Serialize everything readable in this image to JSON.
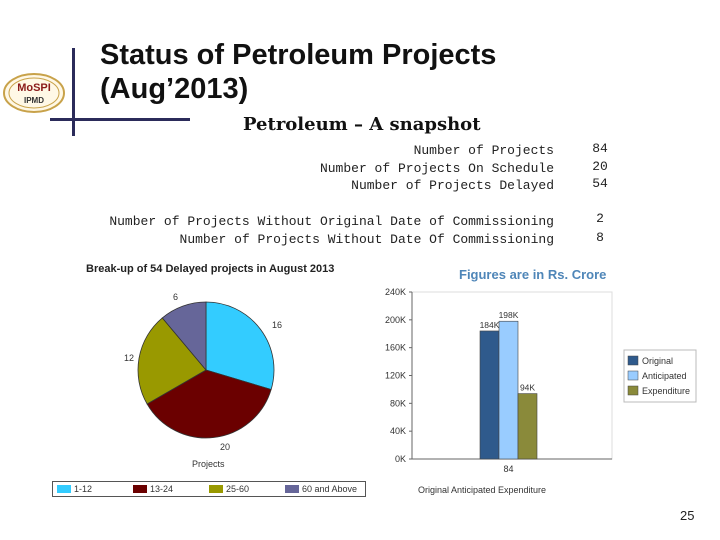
{
  "logo": {
    "line1": "MoSPI",
    "line2": "IPMD"
  },
  "slide": {
    "title_line1": "Status of Petroleum Projects",
    "title_line2": "(Aug’2013)",
    "subtitle": "Petroleum – A snapshot",
    "page_number": "25"
  },
  "stats": [
    {
      "label": "Number of Projects",
      "value": "84"
    },
    {
      "label": "Number of Projects On Schedule",
      "value": "20"
    },
    {
      "label": "Number of Projects Delayed",
      "value": "54"
    },
    {
      "label": "Number of Projects Without Original Date of Commissioning",
      "value": "2"
    },
    {
      "label": "Number of Projects Without Date Of Commissioning",
      "value": "8"
    }
  ],
  "chart_data": [
    {
      "type": "pie",
      "title": "Break-up of 54 Delayed projects in August 2013",
      "xlabel": "Projects",
      "categories": [
        "1-12",
        "13-24",
        "25-60",
        "60 and Above"
      ],
      "values": [
        16,
        20,
        12,
        6
      ],
      "colors": [
        "#33ccff",
        "#6b0000",
        "#999900",
        "#666699"
      ],
      "legend_position": "bottom"
    },
    {
      "type": "bar",
      "title": "Figures are in Rs. Crore",
      "xlabel": "Original Anticipated Expenditure",
      "categories": [
        "84"
      ],
      "series": [
        {
          "name": "Original",
          "values": [
            184
          ],
          "label": "184K",
          "color": "#2f5a8c"
        },
        {
          "name": "Anticipated",
          "values": [
            198
          ],
          "label": "198K",
          "color": "#99ccff"
        },
        {
          "name": "Expenditure",
          "values": [
            94
          ],
          "label": "94K",
          "color": "#8a8a3a"
        }
      ],
      "yticks": [
        "0K",
        "40K",
        "80K",
        "120K",
        "160K",
        "200K",
        "240K"
      ],
      "ylim": [
        0,
        240
      ],
      "yunit": "K",
      "legend_position": "right",
      "grid": false
    }
  ],
  "colors": {
    "accent_line": "#2b2b5a",
    "chart_title": "#4f86b8",
    "logo_border": "#c8a24a",
    "logo_text": "#8b1a1a"
  }
}
